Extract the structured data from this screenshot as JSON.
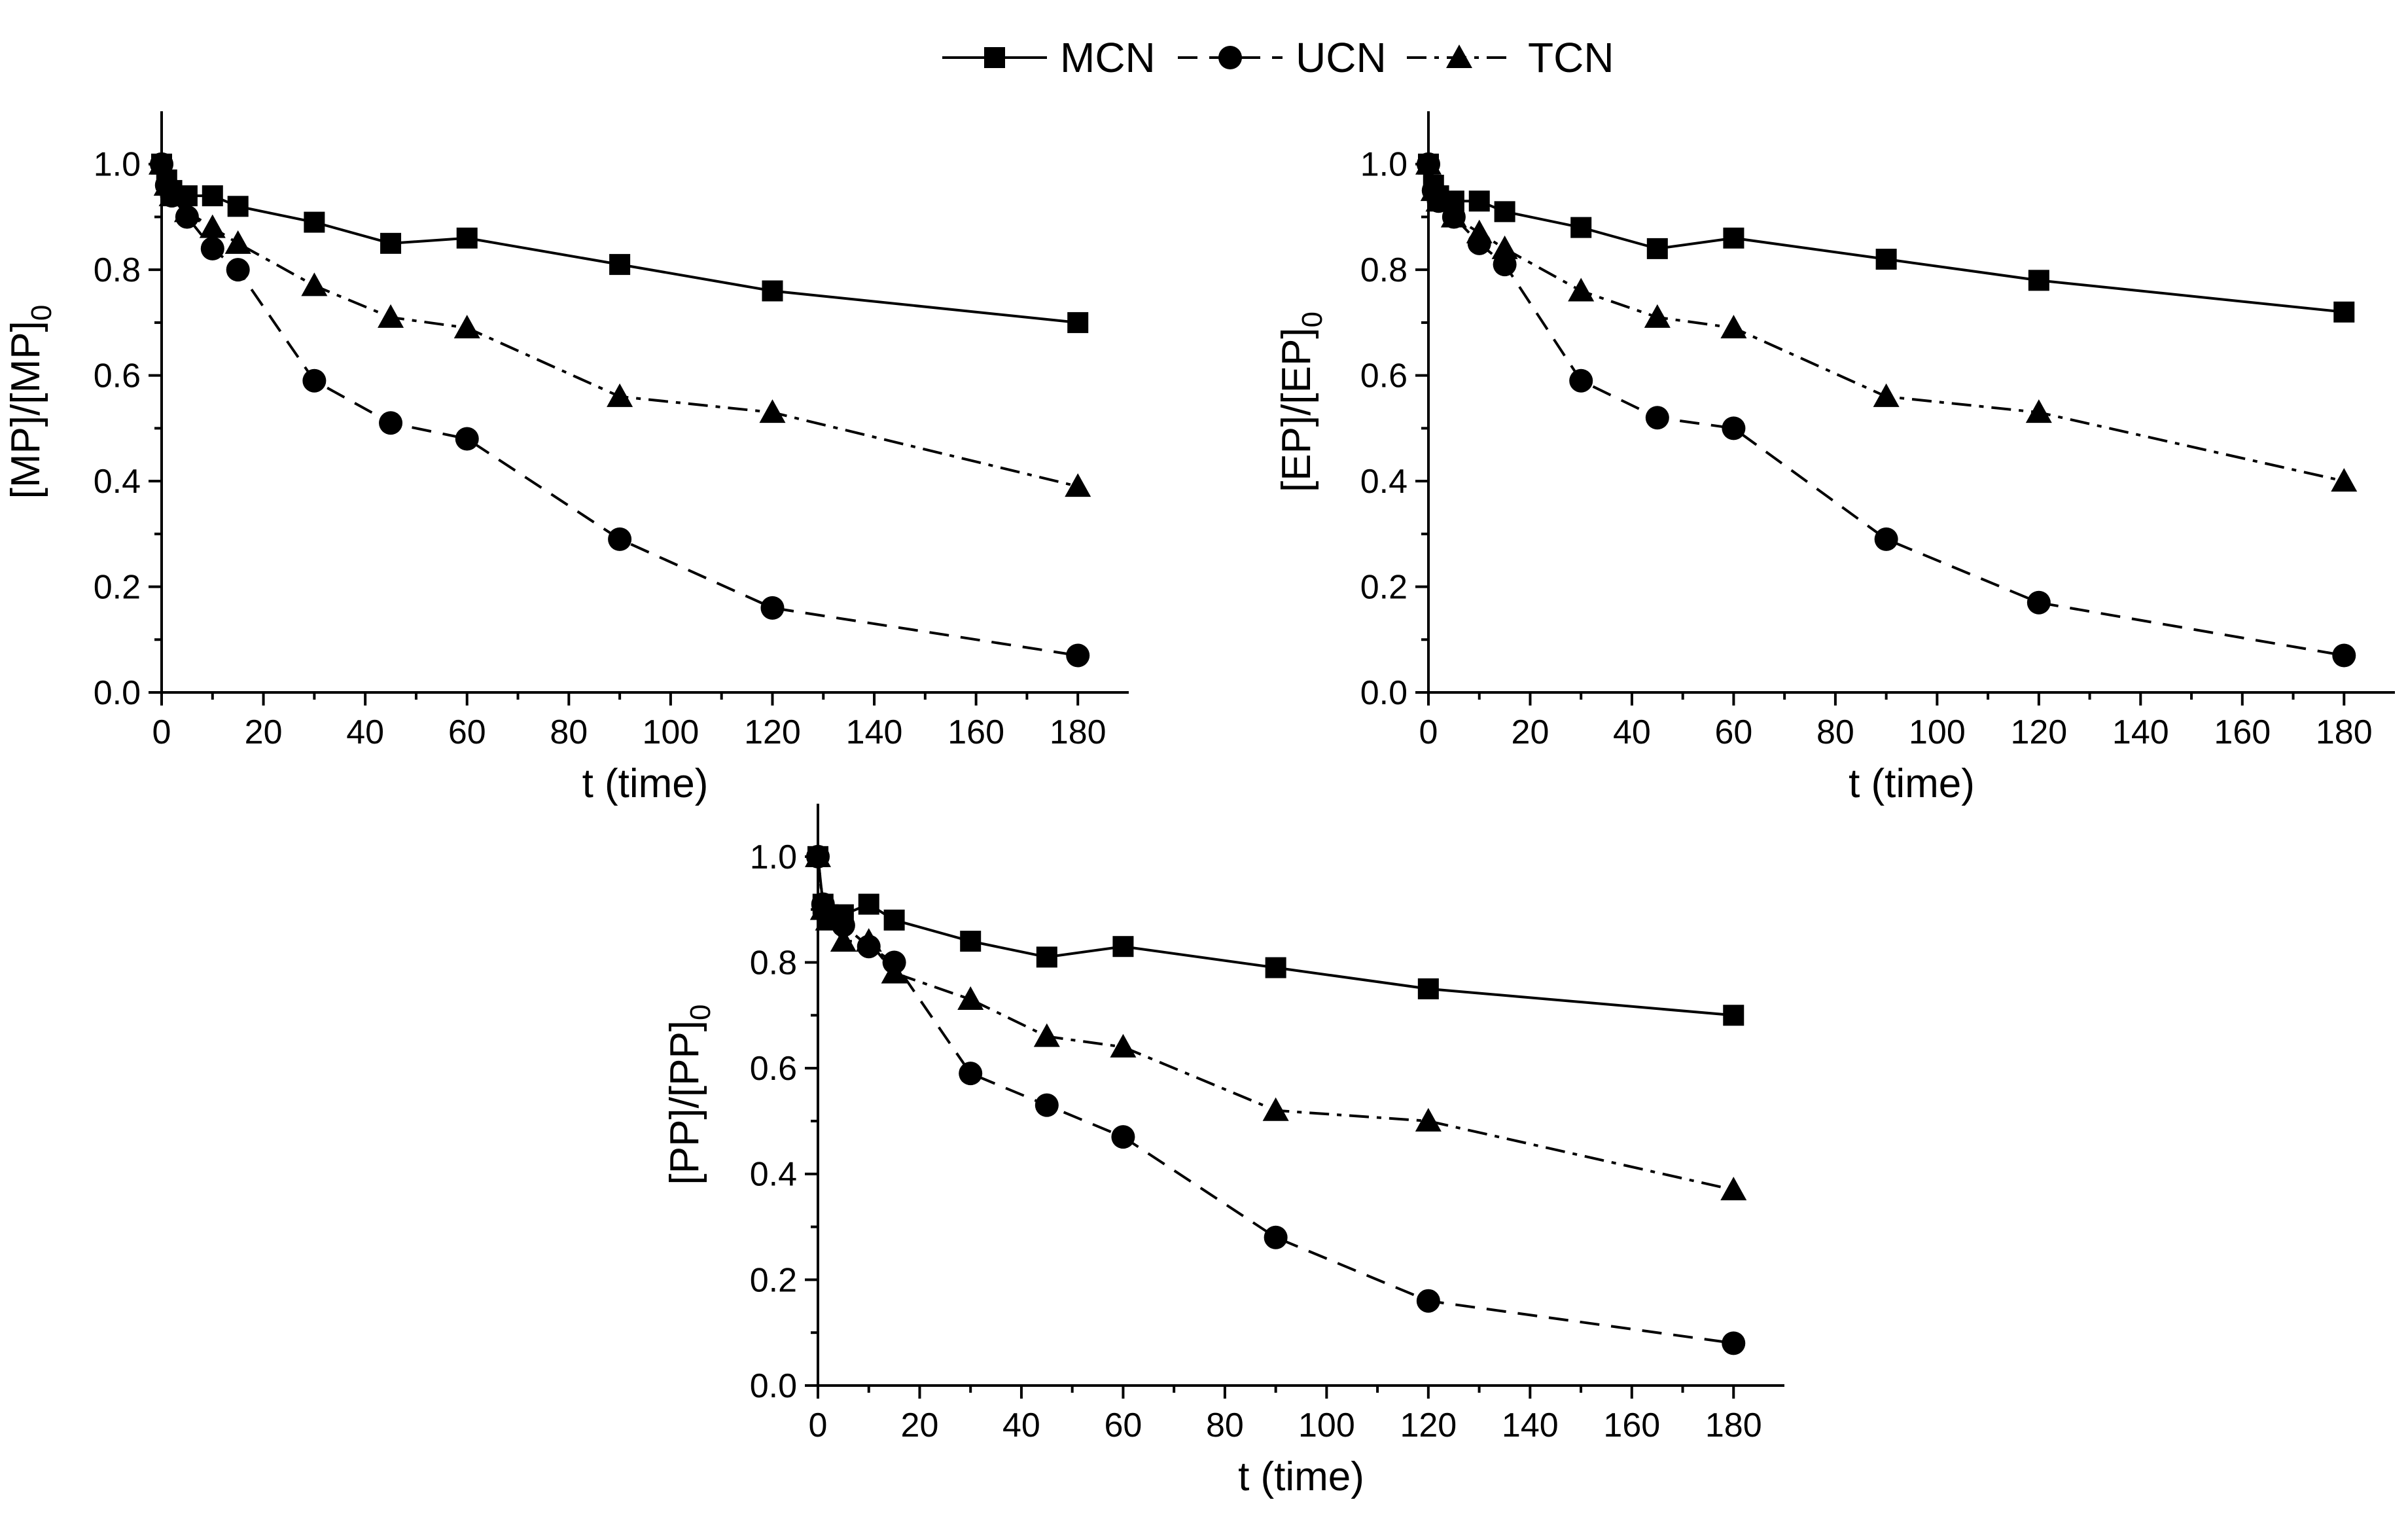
{
  "legend": [
    {
      "key": "MCN",
      "label": "MCN",
      "marker": "square",
      "line": "solid"
    },
    {
      "key": "UCN",
      "label": "UCN",
      "marker": "circle",
      "line": "dash"
    },
    {
      "key": "TCN",
      "label": "TCN",
      "marker": "triangle",
      "line": "dashdot"
    }
  ],
  "colors": {
    "line": "#000000",
    "background": "#ffffff"
  },
  "chart_data": [
    {
      "type": "line",
      "name": "MP",
      "xlabel": "t (time)",
      "ylabel_main": "[MP]/[MP]",
      "ylabel_sub": "0",
      "xlim": [
        0,
        190
      ],
      "ylim": [
        0,
        1.1
      ],
      "xticks": [
        0,
        20,
        40,
        60,
        80,
        100,
        120,
        140,
        160,
        180
      ],
      "yticks": [
        0.0,
        0.2,
        0.4,
        0.6,
        0.8,
        1.0
      ],
      "x": [
        0,
        1,
        2,
        5,
        10,
        15,
        30,
        45,
        60,
        90,
        120,
        180
      ],
      "series": [
        {
          "name": "MCN",
          "values": [
            1.0,
            0.97,
            0.95,
            0.94,
            0.94,
            0.92,
            0.89,
            0.85,
            0.86,
            0.81,
            0.76,
            0.7
          ]
        },
        {
          "name": "UCN",
          "values": [
            1.0,
            0.96,
            0.94,
            0.9,
            0.84,
            0.8,
            0.59,
            0.51,
            0.48,
            0.29,
            0.16,
            0.07
          ]
        },
        {
          "name": "TCN",
          "values": [
            1.0,
            0.96,
            0.94,
            0.91,
            0.88,
            0.85,
            0.77,
            0.71,
            0.69,
            0.56,
            0.53,
            0.39
          ]
        }
      ]
    },
    {
      "type": "line",
      "name": "EP",
      "xlabel": "t (time)",
      "ylabel_main": "[EP]/[EP]",
      "ylabel_sub": "0",
      "xlim": [
        0,
        190
      ],
      "ylim": [
        0,
        1.1
      ],
      "xticks": [
        0,
        20,
        40,
        60,
        80,
        100,
        120,
        140,
        160,
        180
      ],
      "yticks": [
        0.0,
        0.2,
        0.4,
        0.6,
        0.8,
        1.0
      ],
      "x": [
        0,
        1,
        2,
        5,
        10,
        15,
        30,
        45,
        60,
        90,
        120,
        180
      ],
      "series": [
        {
          "name": "MCN",
          "values": [
            1.0,
            0.96,
            0.94,
            0.93,
            0.93,
            0.91,
            0.88,
            0.84,
            0.86,
            0.82,
            0.78,
            0.72
          ]
        },
        {
          "name": "UCN",
          "values": [
            1.0,
            0.95,
            0.93,
            0.9,
            0.85,
            0.81,
            0.59,
            0.52,
            0.5,
            0.29,
            0.17,
            0.07
          ]
        },
        {
          "name": "TCN",
          "values": [
            1.0,
            0.95,
            0.93,
            0.9,
            0.87,
            0.84,
            0.76,
            0.71,
            0.69,
            0.56,
            0.53,
            0.4
          ]
        }
      ]
    },
    {
      "type": "line",
      "name": "PP",
      "xlabel": "t (time)",
      "ylabel_main": "[PP]/[PP]",
      "ylabel_sub": "0",
      "xlim": [
        0,
        190
      ],
      "ylim": [
        0,
        1.1
      ],
      "xticks": [
        0,
        20,
        40,
        60,
        80,
        100,
        120,
        140,
        160,
        180
      ],
      "yticks": [
        0.0,
        0.2,
        0.4,
        0.6,
        0.8,
        1.0
      ],
      "x": [
        0,
        1,
        2,
        5,
        10,
        15,
        30,
        45,
        60,
        90,
        120,
        180
      ],
      "series": [
        {
          "name": "MCN",
          "values": [
            1.0,
            0.91,
            0.89,
            0.89,
            0.91,
            0.88,
            0.84,
            0.81,
            0.83,
            0.79,
            0.75,
            0.7
          ]
        },
        {
          "name": "UCN",
          "values": [
            1.0,
            0.91,
            0.89,
            0.87,
            0.83,
            0.8,
            0.59,
            0.53,
            0.47,
            0.28,
            0.16,
            0.08
          ]
        },
        {
          "name": "TCN",
          "values": [
            1.0,
            0.9,
            0.88,
            0.84,
            0.84,
            0.78,
            0.73,
            0.66,
            0.64,
            0.52,
            0.5,
            0.37
          ]
        }
      ]
    }
  ]
}
